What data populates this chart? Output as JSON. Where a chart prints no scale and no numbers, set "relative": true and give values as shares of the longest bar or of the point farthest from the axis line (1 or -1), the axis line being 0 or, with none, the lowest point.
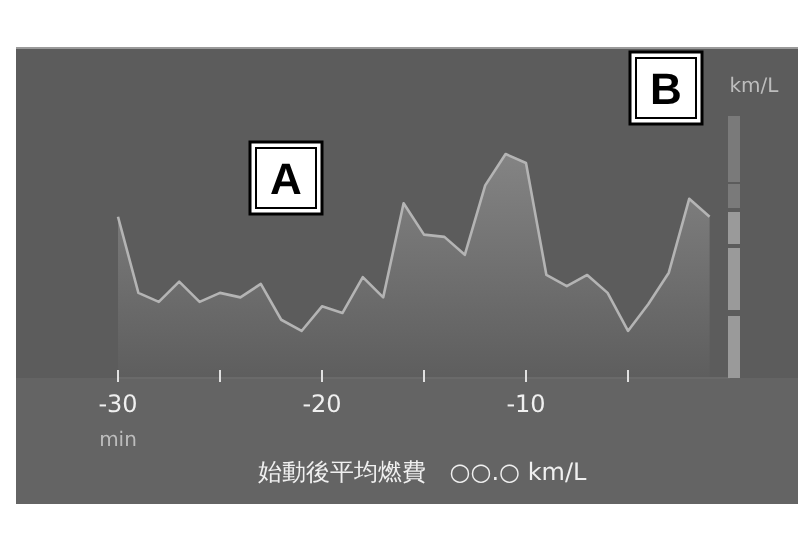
{
  "chart_data": {
    "type": "area",
    "relative": true,
    "x": [
      -30,
      -29,
      -28,
      -27,
      -26,
      -25,
      -24,
      -23,
      -22,
      -21,
      -20,
      -19,
      -18,
      -17,
      -16,
      -15,
      -14,
      -13,
      -12,
      -11,
      -10,
      -9,
      -8,
      -7,
      -6,
      -5,
      -4,
      -3,
      -2,
      -1
    ],
    "series": [
      {
        "color": "#b4b4b4",
        "values": [
          0.72,
          0.38,
          0.34,
          0.43,
          0.34,
          0.38,
          0.36,
          0.42,
          0.26,
          0.21,
          0.32,
          0.29,
          0.45,
          0.36,
          0.78,
          0.64,
          0.63,
          0.55,
          0.86,
          1,
          0.96,
          0.46,
          0.41,
          0.46,
          0.38,
          0.21,
          0.33,
          0.47,
          0.8,
          0.72
        ]
      }
    ],
    "xlim": [
      -30,
      0
    ],
    "xticks": [
      -30,
      {
        "value": -25,
        "label": null
      },
      -20,
      {
        "value": -15,
        "label": null
      },
      -10,
      {
        "value": -5,
        "label": null
      }
    ],
    "xlabel": "min",
    "annotations": [
      "A",
      "B",
      "km/L",
      "始動後平均燃費　○○.○ km/L"
    ],
    "grid": false
  }
}
